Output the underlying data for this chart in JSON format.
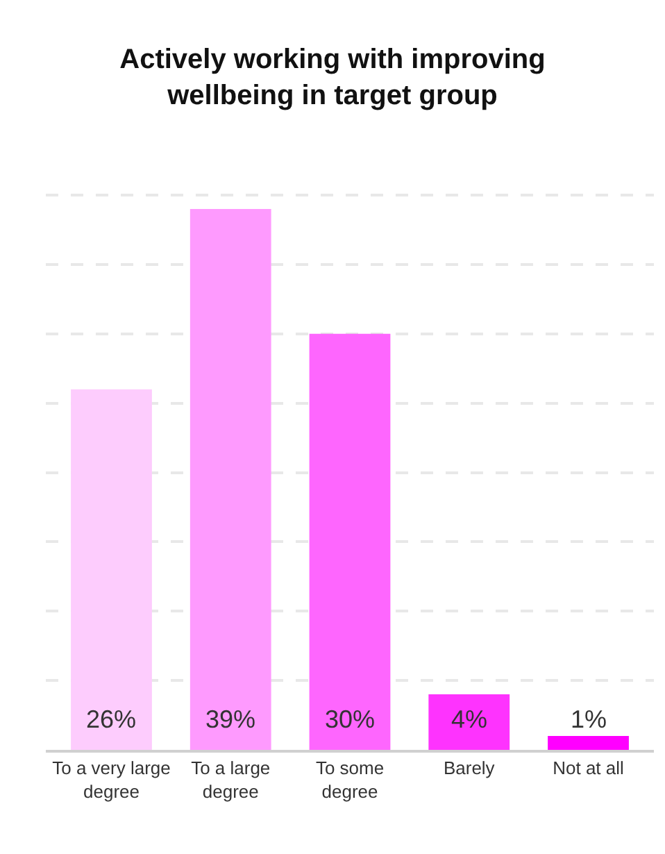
{
  "chart_data": {
    "type": "bar",
    "title": "Actively working with improving\nwellbeing in target group",
    "categories": [
      "To a very large\ndegree",
      "To a large\ndegree",
      "To some\ndegree",
      "Barely",
      "Not at all"
    ],
    "values": [
      26,
      39,
      30,
      4,
      1
    ],
    "colors": [
      "#fdccfd",
      "#fe9afe",
      "#fe66fe",
      "#fe33fe",
      "#ff00ff"
    ],
    "value_labels": [
      "26%",
      "39%",
      "30%",
      "4%",
      "1%"
    ],
    "tick_labels": "x",
    "grid": "y",
    "legend": false
  }
}
